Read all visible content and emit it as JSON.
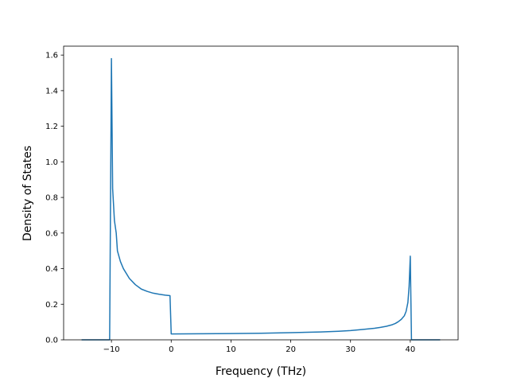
{
  "chart_data": {
    "type": "line",
    "title": "",
    "xlabel": "Frequency (THz)",
    "ylabel": "Density of States",
    "xlim": [
      -18,
      48
    ],
    "ylim": [
      0.0,
      1.65
    ],
    "grid": false,
    "xticks": [
      -10,
      0,
      10,
      20,
      30,
      40
    ],
    "xtick_labels": [
      "−10",
      "0",
      "10",
      "20",
      "30",
      "40"
    ],
    "yticks": [
      0.0,
      0.2,
      0.4,
      0.6,
      0.8,
      1.0,
      1.2,
      1.4,
      1.6
    ],
    "ytick_labels": [
      "0.0",
      "0.2",
      "0.4",
      "0.6",
      "0.8",
      "1.0",
      "1.2",
      "1.4",
      "1.6"
    ],
    "series": [
      {
        "color": "#1f77b4",
        "x": [
          -15,
          -10.3,
          -10.0,
          -9.8,
          -9.5,
          -9.2,
          -9.0,
          -8.5,
          -8.0,
          -7.0,
          -6.0,
          -5.0,
          -4.0,
          -3.0,
          -2.0,
          -1.0,
          -0.2,
          0.0,
          5,
          10,
          15,
          20,
          25,
          28,
          30,
          32,
          34,
          35,
          36,
          37,
          37.5,
          38,
          38.5,
          39,
          39.3,
          39.6,
          39.8,
          40.0,
          40.2,
          45
        ],
        "y": [
          0.0,
          0.0,
          1.58,
          0.85,
          0.67,
          0.6,
          0.5,
          0.44,
          0.4,
          0.345,
          0.31,
          0.285,
          0.272,
          0.262,
          0.256,
          0.251,
          0.248,
          0.033,
          0.034,
          0.035,
          0.037,
          0.04,
          0.044,
          0.048,
          0.052,
          0.058,
          0.065,
          0.07,
          0.076,
          0.085,
          0.092,
          0.102,
          0.115,
          0.135,
          0.16,
          0.21,
          0.3,
          0.47,
          0.0,
          0.0
        ]
      }
    ]
  }
}
